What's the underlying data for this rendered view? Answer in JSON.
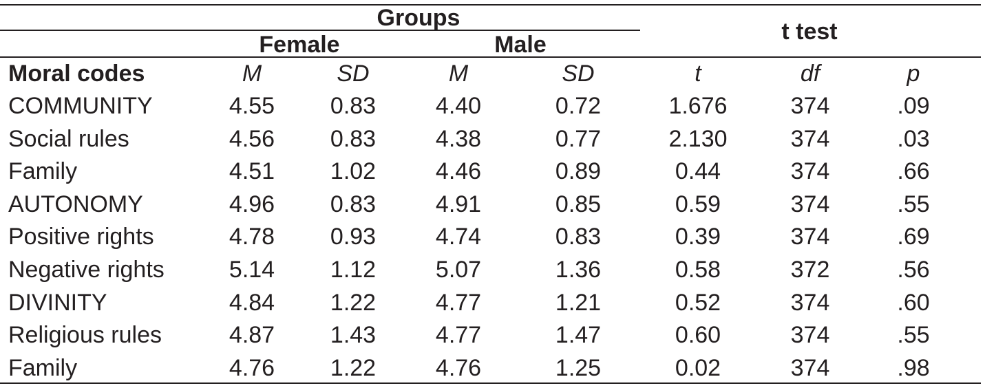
{
  "table": {
    "group_header": "Groups",
    "test_header": "t test",
    "subgroups": [
      "Female",
      "Male"
    ],
    "row_header": "Moral codes",
    "columns": [
      "M",
      "SD",
      "M",
      "SD",
      "t",
      "df",
      "p"
    ],
    "rows": [
      {
        "label": "COMMUNITY",
        "values": [
          "4.55",
          "0.83",
          "4.40",
          "0.72",
          "1.676",
          "374",
          ".09"
        ]
      },
      {
        "label": "Social rules",
        "values": [
          "4.56",
          "0.83",
          "4.38",
          "0.77",
          "2.130",
          "374",
          ".03"
        ]
      },
      {
        "label": "Family",
        "values": [
          "4.51",
          "1.02",
          "4.46",
          "0.89",
          "0.44",
          "374",
          ".66"
        ]
      },
      {
        "label": "AUTONOMY",
        "values": [
          "4.96",
          "0.83",
          "4.91",
          "0.85",
          "0.59",
          "374",
          ".55"
        ]
      },
      {
        "label": "Positive rights",
        "values": [
          "4.78",
          "0.93",
          "4.74",
          "0.83",
          "0.39",
          "374",
          ".69"
        ]
      },
      {
        "label": "Negative rights",
        "values": [
          "5.14",
          "1.12",
          "5.07",
          "1.36",
          "0.58",
          "372",
          ".56"
        ]
      },
      {
        "label": "DIVINITY",
        "values": [
          "4.84",
          "1.22",
          "4.77",
          "1.21",
          "0.52",
          "374",
          ".60"
        ]
      },
      {
        "label": "Religious rules",
        "values": [
          "4.87",
          "1.43",
          "4.77",
          "1.47",
          "0.60",
          "374",
          ".55"
        ]
      },
      {
        "label": "Family",
        "values": [
          "4.76",
          "1.22",
          "4.76",
          "1.25",
          "0.02",
          "374",
          ".98"
        ]
      }
    ]
  }
}
